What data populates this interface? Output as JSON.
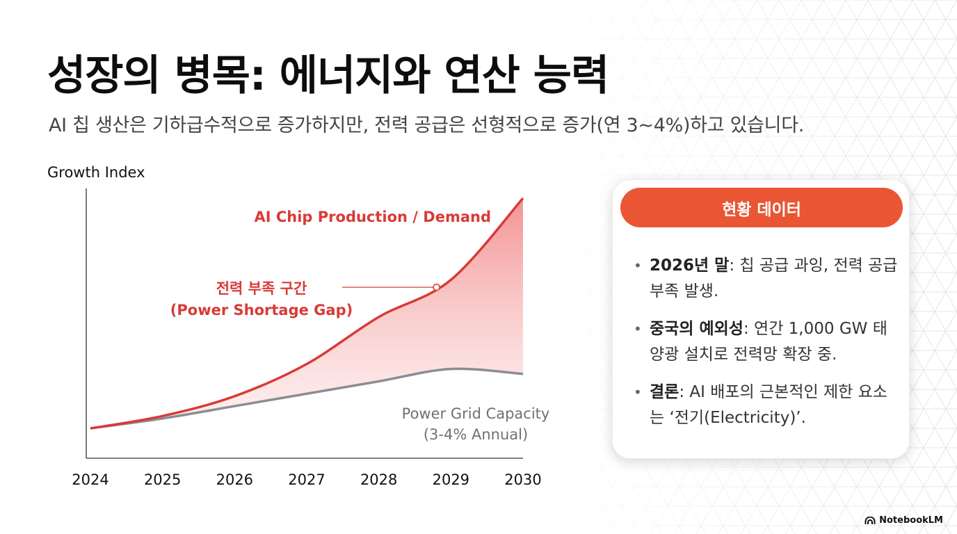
{
  "title": "성장의 병목: 에너지와 연산 능력",
  "subtitle": "AI 칩 생산은 기하급수적으로 증가하지만, 전력 공급은 선형적으로 증가(연 3~4%)하고 있습니다.",
  "chart_data": {
    "type": "line",
    "ylabel": "Growth Index",
    "x": [
      2024,
      2025,
      2026,
      2027,
      2028,
      2029,
      2030
    ],
    "categories": [
      "2024",
      "2025",
      "2026",
      "2027",
      "2028",
      "2029",
      "2030"
    ],
    "ylim": [
      0,
      100
    ],
    "series": [
      {
        "name": "AI Chip Production / Demand",
        "values": [
          7,
          12,
          20,
          33,
          52,
          67,
          100
        ],
        "color": "#d93a37"
      },
      {
        "name": "Power Grid Capacity",
        "name_line2": "(3-4% Annual)",
        "values": [
          7,
          11,
          16,
          21,
          26,
          31,
          29
        ],
        "color": "#8b8d93"
      }
    ],
    "gap_annotation": {
      "line1": "전력 부족 구간",
      "line2": "(Power Shortage Gap)",
      "x": 2028.8
    },
    "grid": false,
    "legend": "inline"
  },
  "panel": {
    "header": "현황 데이터",
    "facts": [
      {
        "bold": "2026년 말",
        "text": ": 칩 공급 과잉, 전력 공급 부족 발생."
      },
      {
        "bold": "중국의 예외성",
        "text": ": 연간 1,000 GW 태양광 설치로 전력망 확장 중."
      },
      {
        "bold": "결론",
        "text": ": AI 배포의 근본적인 제한 요소는 ‘전기(Electricity)’."
      }
    ]
  },
  "brand": "NotebookLM",
  "colors": {
    "accent": "#ea5634",
    "chip": "#d93a37",
    "grid": "#8b8d93"
  }
}
